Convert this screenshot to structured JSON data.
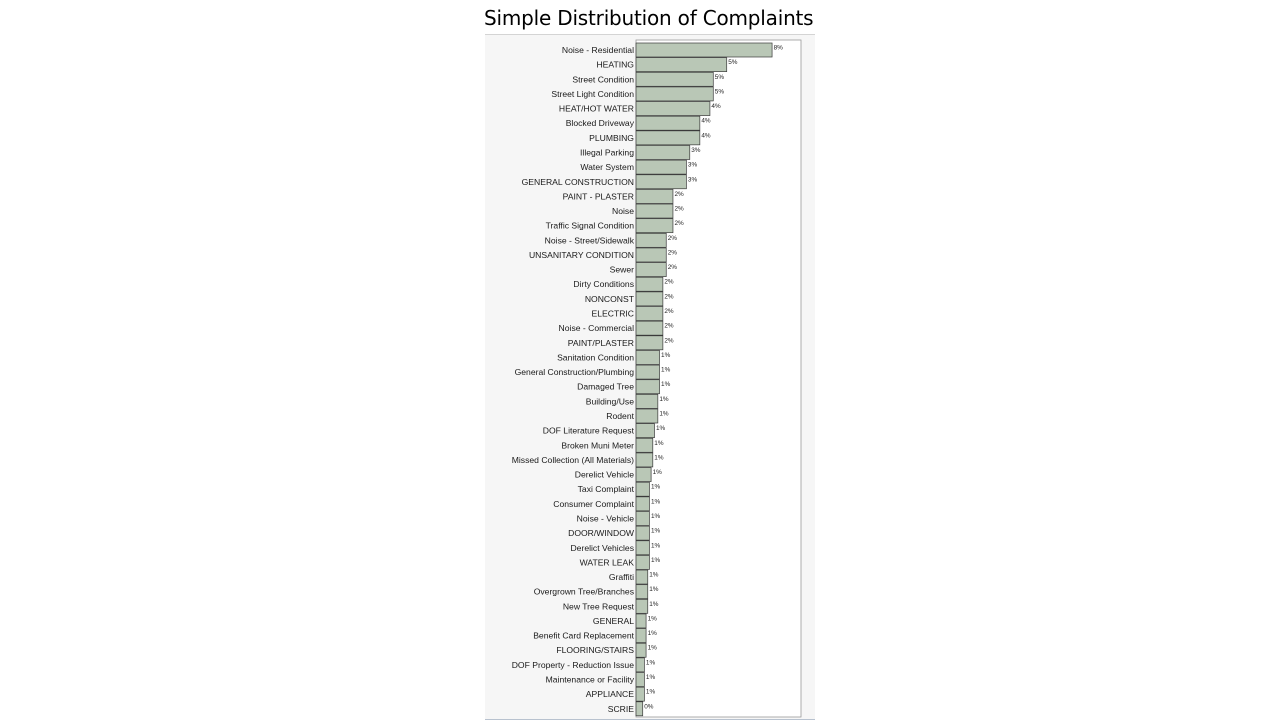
{
  "title": "Simple Distribution of Complaints",
  "colors": {
    "bar_fill": "#b9c7b6",
    "bar_stroke": "#3a3a3a",
    "panel_bg": "#f6f6f6",
    "plot_bg": "#ffffff"
  },
  "chart_data": {
    "type": "bar",
    "orientation": "horizontal",
    "title": "Simple Distribution of Complaints",
    "xlabel": "",
    "ylabel": "",
    "xlim": [
      0,
      12
    ],
    "grid": false,
    "legend": "none",
    "categories": [
      "Noise - Residential",
      "HEATING",
      "Street Condition",
      "Street Light Condition",
      "HEAT/HOT WATER",
      "Blocked Driveway",
      "PLUMBING",
      "Illegal Parking",
      "Water System",
      "GENERAL CONSTRUCTION",
      "PAINT - PLASTER",
      "Noise",
      "Traffic Signal Condition",
      "Noise - Street/Sidewalk",
      "UNSANITARY CONDITION",
      "Sewer",
      "Dirty Conditions",
      "NONCONST",
      "ELECTRIC",
      "Noise - Commercial",
      "PAINT/PLASTER",
      "Sanitation Condition",
      "General Construction/Plumbing",
      "Damaged Tree",
      "Building/Use",
      "Rodent",
      "DOF Literature Request",
      "Broken Muni Meter",
      "Missed Collection (All Materials)",
      "Derelict Vehicle",
      "Taxi Complaint",
      "Consumer Complaint",
      "Noise - Vehicle",
      "DOOR/WINDOW",
      "Derelict Vehicles",
      "WATER LEAK",
      "Graffiti",
      "Overgrown Tree/Branches",
      "New Tree Request",
      "GENERAL",
      "Benefit Card Replacement",
      "FLOORING/STAIRS",
      "DOF Property - Reduction Issue",
      "Maintenance or Facility",
      "APPLIANCE",
      "SCRIE"
    ],
    "values": [
      8.1,
      5.4,
      4.6,
      4.6,
      4.4,
      3.8,
      3.8,
      3.2,
      3.0,
      3.0,
      2.2,
      2.2,
      2.2,
      1.8,
      1.8,
      1.8,
      1.6,
      1.6,
      1.6,
      1.6,
      1.6,
      1.4,
      1.4,
      1.4,
      1.3,
      1.3,
      1.1,
      1.0,
      1.0,
      0.9,
      0.8,
      0.8,
      0.8,
      0.8,
      0.8,
      0.8,
      0.7,
      0.7,
      0.7,
      0.6,
      0.6,
      0.6,
      0.5,
      0.5,
      0.5,
      0.4
    ],
    "value_labels": [
      "8%",
      "5%",
      "5%",
      "5%",
      "4%",
      "4%",
      "4%",
      "3%",
      "3%",
      "3%",
      "2%",
      "2%",
      "2%",
      "2%",
      "2%",
      "2%",
      "2%",
      "2%",
      "2%",
      "2%",
      "2%",
      "1%",
      "1%",
      "1%",
      "1%",
      "1%",
      "1%",
      "1%",
      "1%",
      "1%",
      "1%",
      "1%",
      "1%",
      "1%",
      "1%",
      "1%",
      "1%",
      "1%",
      "1%",
      "1%",
      "1%",
      "1%",
      "1%",
      "1%",
      "1%",
      "0%"
    ]
  }
}
